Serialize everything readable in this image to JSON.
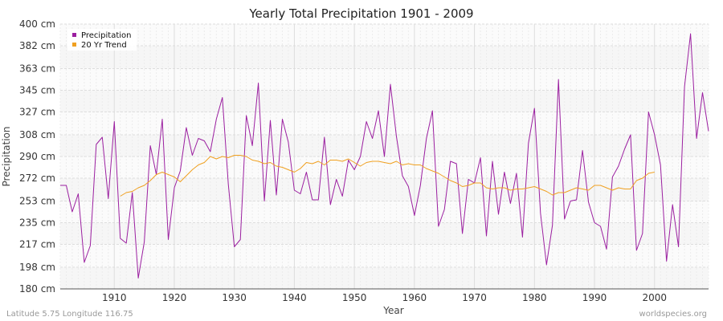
{
  "chart_data": {
    "type": "line",
    "title": "Yearly Total Precipitation 1901 - 2009",
    "xlabel": "Year",
    "ylabel": "Precipitation",
    "xlim": [
      1901,
      2009
    ],
    "ylim": [
      180,
      400
    ],
    "y_ticks": [
      180,
      198,
      217,
      235,
      253,
      272,
      290,
      308,
      327,
      345,
      363,
      382,
      400
    ],
    "y_tick_labels": [
      "180 cm",
      "198 cm",
      "217 cm",
      "235 cm",
      "253 cm",
      "272 cm",
      "290 cm",
      "308 cm",
      "327 cm",
      "345 cm",
      "363 cm",
      "382 cm",
      "400 cm"
    ],
    "x_ticks": [
      1910,
      1920,
      1930,
      1940,
      1950,
      1960,
      1970,
      1980,
      1990,
      2000
    ],
    "x_tick_labels": [
      "1910",
      "1920",
      "1930",
      "1940",
      "1950",
      "1960",
      "1970",
      "1980",
      "1990",
      "2000"
    ],
    "grid": true,
    "legend_position": "top-left",
    "series": [
      {
        "name": "Precipitation",
        "color": "#9b1fa0",
        "x_start": 1901,
        "values": [
          266,
          266,
          244,
          259,
          202,
          216,
          300,
          306,
          255,
          319,
          222,
          218,
          260,
          189,
          219,
          299,
          275,
          321,
          221,
          264,
          278,
          314,
          291,
          305,
          303,
          294,
          321,
          339,
          267,
          215,
          221,
          324,
          299,
          351,
          253,
          320,
          258,
          321,
          302,
          262,
          259,
          277,
          254,
          254,
          306,
          250,
          271,
          257,
          287,
          279,
          290,
          319,
          305,
          328,
          290,
          350,
          307,
          274,
          265,
          241,
          266,
          305,
          328,
          232,
          246,
          286,
          284,
          226,
          271,
          268,
          289,
          224,
          286,
          242,
          277,
          251,
          276,
          223,
          301,
          330,
          243,
          200,
          233,
          354,
          238,
          253,
          254,
          295,
          252,
          235,
          232,
          213,
          273,
          282,
          296,
          308,
          212,
          226,
          327,
          308,
          283,
          203,
          250,
          215,
          348,
          392,
          305,
          343,
          311
        ]
      },
      {
        "name": "20 Yr Trend",
        "color": "#f0a020",
        "x_start": 1911,
        "values": [
          257,
          260,
          261,
          264,
          266,
          270,
          275,
          277,
          275,
          273,
          269,
          274,
          279,
          283,
          285,
          290,
          288,
          290,
          289,
          291,
          291,
          290,
          287,
          286,
          284,
          285,
          282,
          281,
          279,
          277,
          280,
          285,
          284,
          286,
          283,
          287,
          287,
          286,
          288,
          285,
          282,
          285,
          286,
          286,
          285,
          284,
          286,
          283,
          284,
          283,
          283,
          280,
          278,
          276,
          273,
          270,
          268,
          265,
          266,
          268,
          268,
          264,
          263,
          264,
          264,
          262,
          263,
          263,
          264,
          265,
          263,
          261,
          258,
          260,
          260,
          262,
          264,
          263,
          262,
          266,
          266,
          264,
          262,
          264,
          263,
          263,
          270,
          272,
          276,
          277
        ]
      }
    ],
    "footer_left": "Latitude 5.75 Longitude 116.75",
    "footer_right": "worldspecies.org"
  }
}
